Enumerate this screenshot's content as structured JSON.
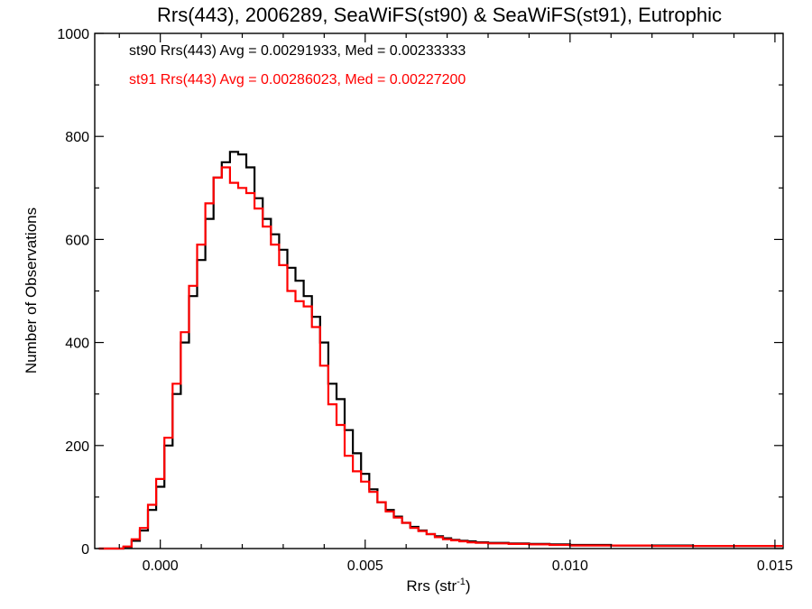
{
  "chart_data": {
    "type": "histogram-step",
    "title": "Rrs(443), 2006289, SeaWiFS(st90) & SeaWiFS(st91), Eutrophic",
    "xlabel": "Rrs (str",
    "xlabel_sup": "-1",
    "xlabel_end": ")",
    "ylabel": "Number of Observations",
    "xlim": [
      -0.0016,
      0.0152
    ],
    "ylim": [
      0,
      1000
    ],
    "x_ticks": [
      0.0,
      0.005,
      0.01,
      0.015
    ],
    "x_tick_labels": [
      "0.000",
      "0.005",
      "0.010",
      "0.015"
    ],
    "y_ticks": [
      0,
      200,
      400,
      600,
      800,
      1000
    ],
    "y_tick_labels": [
      "0",
      "200",
      "400",
      "600",
      "800",
      "1000"
    ],
    "stats": [
      {
        "text": "st90 Rrs(443) Avg = 0.00291933, Med = 0.00233333",
        "color": "#000000"
      },
      {
        "text": "st91 Rrs(443) Avg = 0.00286023, Med = 0.00227200",
        "color": "#ff0000"
      }
    ],
    "series": [
      {
        "color": "#000000",
        "points": [
          [
            -0.0015,
            0
          ],
          [
            -0.0009,
            3
          ],
          [
            -0.0007,
            15
          ],
          [
            -0.0005,
            35
          ],
          [
            -0.0003,
            75
          ],
          [
            -0.0001,
            120
          ],
          [
            0.0001,
            200
          ],
          [
            0.0003,
            300
          ],
          [
            0.0005,
            400
          ],
          [
            0.0007,
            490
          ],
          [
            0.0009,
            560
          ],
          [
            0.0011,
            640
          ],
          [
            0.0013,
            720
          ],
          [
            0.0015,
            750
          ],
          [
            0.0017,
            770
          ],
          [
            0.0019,
            765
          ],
          [
            0.0021,
            740
          ],
          [
            0.0023,
            680
          ],
          [
            0.0025,
            640
          ],
          [
            0.0027,
            610
          ],
          [
            0.0029,
            580
          ],
          [
            0.0031,
            545
          ],
          [
            0.0033,
            520
          ],
          [
            0.0035,
            490
          ],
          [
            0.0037,
            450
          ],
          [
            0.0039,
            400
          ],
          [
            0.0041,
            320
          ],
          [
            0.0043,
            290
          ],
          [
            0.0045,
            230
          ],
          [
            0.0047,
            185
          ],
          [
            0.0049,
            145
          ],
          [
            0.0051,
            115
          ],
          [
            0.0053,
            90
          ],
          [
            0.0055,
            75
          ],
          [
            0.0057,
            62
          ],
          [
            0.0059,
            50
          ],
          [
            0.0061,
            42
          ],
          [
            0.0063,
            35
          ],
          [
            0.0065,
            28
          ],
          [
            0.0067,
            24
          ],
          [
            0.0069,
            20
          ],
          [
            0.0071,
            17
          ],
          [
            0.0073,
            15
          ],
          [
            0.0075,
            14
          ],
          [
            0.0077,
            12
          ],
          [
            0.008,
            11
          ],
          [
            0.0085,
            10
          ],
          [
            0.009,
            9
          ],
          [
            0.0095,
            8
          ],
          [
            0.01,
            7
          ],
          [
            0.0105,
            7
          ],
          [
            0.011,
            6
          ],
          [
            0.012,
            6
          ],
          [
            0.013,
            5
          ],
          [
            0.014,
            5
          ],
          [
            0.015,
            5
          ],
          [
            0.0152,
            5
          ]
        ]
      },
      {
        "color": "#ff0000",
        "points": [
          [
            -0.0015,
            0
          ],
          [
            -0.0009,
            4
          ],
          [
            -0.0007,
            18
          ],
          [
            -0.0005,
            40
          ],
          [
            -0.0003,
            85
          ],
          [
            -0.0001,
            135
          ],
          [
            0.0001,
            215
          ],
          [
            0.0003,
            320
          ],
          [
            0.0005,
            420
          ],
          [
            0.0007,
            510
          ],
          [
            0.0009,
            590
          ],
          [
            0.0011,
            670
          ],
          [
            0.0013,
            720
          ],
          [
            0.0015,
            740
          ],
          [
            0.0017,
            710
          ],
          [
            0.0019,
            700
          ],
          [
            0.0021,
            690
          ],
          [
            0.0023,
            660
          ],
          [
            0.0025,
            625
          ],
          [
            0.0027,
            590
          ],
          [
            0.0029,
            550
          ],
          [
            0.0031,
            500
          ],
          [
            0.0033,
            480
          ],
          [
            0.0035,
            470
          ],
          [
            0.0037,
            430
          ],
          [
            0.0039,
            355
          ],
          [
            0.0041,
            280
          ],
          [
            0.0043,
            240
          ],
          [
            0.0045,
            180
          ],
          [
            0.0047,
            150
          ],
          [
            0.0049,
            130
          ],
          [
            0.0051,
            110
          ],
          [
            0.0053,
            90
          ],
          [
            0.0055,
            72
          ],
          [
            0.0057,
            60
          ],
          [
            0.0059,
            50
          ],
          [
            0.0061,
            40
          ],
          [
            0.0063,
            34
          ],
          [
            0.0065,
            28
          ],
          [
            0.0067,
            22
          ],
          [
            0.0069,
            18
          ],
          [
            0.0071,
            16
          ],
          [
            0.0073,
            14
          ],
          [
            0.0075,
            12
          ],
          [
            0.0077,
            11
          ],
          [
            0.008,
            10
          ],
          [
            0.0085,
            9
          ],
          [
            0.009,
            8
          ],
          [
            0.0095,
            7
          ],
          [
            0.01,
            6
          ],
          [
            0.0105,
            6
          ],
          [
            0.011,
            6
          ],
          [
            0.012,
            5
          ],
          [
            0.013,
            5
          ],
          [
            0.014,
            5
          ],
          [
            0.015,
            5
          ],
          [
            0.0152,
            5
          ]
        ]
      }
    ]
  }
}
